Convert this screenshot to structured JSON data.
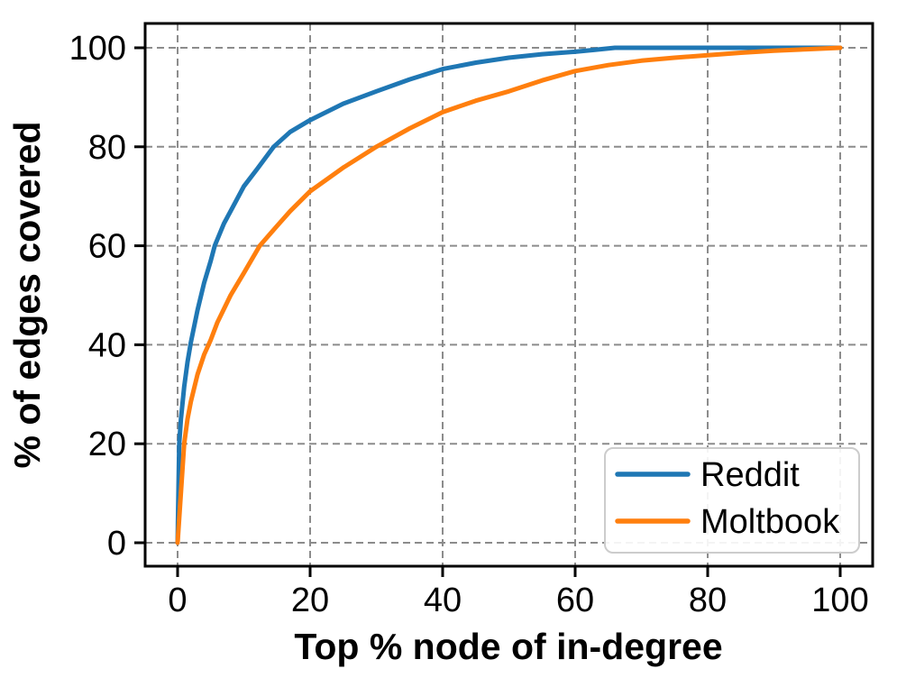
{
  "chart_data": {
    "type": "line",
    "title": "",
    "xlabel": "Top % node of in-degree",
    "ylabel": "% of edges covered",
    "xlim": [
      0,
      100
    ],
    "ylim": [
      0,
      100
    ],
    "xticks": [
      0,
      20,
      40,
      60,
      80,
      100
    ],
    "yticks": [
      0,
      20,
      40,
      60,
      80,
      100
    ],
    "grid": "dashed",
    "legend_position": "lower right",
    "series": [
      {
        "name": "Reddit",
        "color": "#1f77b4",
        "points": [
          [
            0,
            0
          ],
          [
            0.25,
            20
          ],
          [
            0.5,
            25
          ],
          [
            1,
            31.5
          ],
          [
            1.5,
            36.5
          ],
          [
            2,
            40.5
          ],
          [
            3,
            47
          ],
          [
            4,
            52.5
          ],
          [
            5,
            57
          ],
          [
            5.6,
            60
          ],
          [
            7,
            64.5
          ],
          [
            8,
            67
          ],
          [
            10,
            72
          ],
          [
            12,
            75.5
          ],
          [
            14.5,
            80
          ],
          [
            17,
            83
          ],
          [
            20,
            85.4
          ],
          [
            25,
            88.7
          ],
          [
            30,
            91.2
          ],
          [
            35,
            93.6
          ],
          [
            40,
            95.7
          ],
          [
            45,
            97
          ],
          [
            50,
            98
          ],
          [
            55,
            98.7
          ],
          [
            60,
            99.2
          ],
          [
            63,
            99.6
          ],
          [
            66,
            100
          ],
          [
            80,
            100
          ],
          [
            100,
            100
          ]
        ]
      },
      {
        "name": "Moltbook",
        "color": "#ff7f0e",
        "points": [
          [
            0,
            0
          ],
          [
            1,
            20
          ],
          [
            1.5,
            25
          ],
          [
            2,
            28.5
          ],
          [
            3,
            34
          ],
          [
            4,
            38
          ],
          [
            5,
            41
          ],
          [
            6,
            44.5
          ],
          [
            8,
            50
          ],
          [
            10,
            54.5
          ],
          [
            12.4,
            60
          ],
          [
            15,
            64
          ],
          [
            17,
            67
          ],
          [
            20,
            71
          ],
          [
            25,
            75.8
          ],
          [
            30,
            80
          ],
          [
            35,
            83.7
          ],
          [
            40,
            87
          ],
          [
            45,
            89.3
          ],
          [
            50,
            91.2
          ],
          [
            55,
            93.4
          ],
          [
            60,
            95.3
          ],
          [
            65,
            96.5
          ],
          [
            70,
            97.4
          ],
          [
            75,
            98
          ],
          [
            80,
            98.5
          ],
          [
            85,
            99
          ],
          [
            90,
            99.4
          ],
          [
            95,
            99.7
          ],
          [
            100,
            100
          ]
        ]
      }
    ]
  },
  "colors": {
    "background": "#ffffff",
    "grid": "#8c8c8c",
    "spine": "#000000",
    "tick": "#000000",
    "text": "#000000",
    "legend_border": "#cccccc",
    "legend_fill": "#ffffff"
  }
}
